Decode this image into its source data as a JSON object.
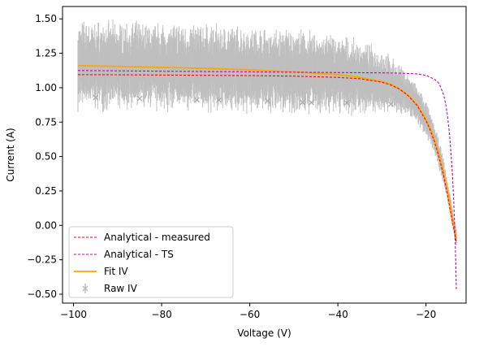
{
  "chart_data": {
    "type": "line",
    "title": "",
    "xlabel": "Voltage (V)",
    "ylabel": "Current (A)",
    "xlim": [
      -102.5,
      -10.9
    ],
    "ylim": [
      -0.565,
      1.59
    ],
    "xticks": [
      -100,
      -80,
      -60,
      -40,
      -20
    ],
    "xtick_labels": [
      "−100",
      "−80",
      "−60",
      "−40",
      "−20"
    ],
    "yticks": [
      -0.5,
      -0.25,
      0.0,
      0.25,
      0.5,
      0.75,
      1.0,
      1.25,
      1.5
    ],
    "ytick_labels": [
      "−0.50",
      "−0.25",
      "0.00",
      "0.25",
      "0.50",
      "0.75",
      "1.00",
      "1.25",
      "1.50"
    ],
    "grid": false,
    "legend_position": "lower-left",
    "colors": {
      "raw": "#bfbfbf",
      "measured": "#ff0000",
      "ts": "#c000c0",
      "fit": "#ffa500"
    },
    "series": [
      {
        "name": "Analytical - measured",
        "style": "dashed",
        "color": "#ff0000",
        "x": [
          -99,
          -90,
          -80,
          -70,
          -60,
          -50,
          -40,
          -35,
          -30,
          -28,
          -26,
          -24,
          -22,
          -20,
          -19,
          -18,
          -17,
          -16,
          -15,
          -14.5,
          -14,
          -13.5,
          -13.1
        ],
        "y": [
          1.095,
          1.094,
          1.092,
          1.09,
          1.088,
          1.084,
          1.075,
          1.065,
          1.04,
          1.02,
          0.99,
          0.94,
          0.87,
          0.76,
          0.69,
          0.6,
          0.49,
          0.36,
          0.2,
          0.11,
          0.02,
          -0.06,
          -0.12
        ]
      },
      {
        "name": "Analytical - TS",
        "style": "dashed",
        "color": "#c000c0",
        "x": [
          -99,
          -80,
          -60,
          -40,
          -30,
          -25,
          -22,
          -20,
          -18,
          -17,
          -16,
          -15.5,
          -15,
          -14.5,
          -14,
          -13.8,
          -13.6,
          -13.4,
          -13.2,
          -13.1
        ],
        "y": [
          1.125,
          1.12,
          1.115,
          1.11,
          1.108,
          1.105,
          1.1,
          1.09,
          1.06,
          1.03,
          0.95,
          0.88,
          0.77,
          0.6,
          0.38,
          0.25,
          0.1,
          -0.08,
          -0.3,
          -0.47
        ]
      },
      {
        "name": "Fit IV",
        "style": "solid",
        "color": "#ffa500",
        "x": [
          -99,
          -90,
          -80,
          -70,
          -60,
          -50,
          -40,
          -35,
          -30,
          -28,
          -26,
          -24,
          -22,
          -20,
          -19,
          -18,
          -17,
          -16,
          -15,
          -14.5,
          -14,
          -13.5,
          -13.1
        ],
        "y": [
          1.16,
          1.155,
          1.148,
          1.14,
          1.13,
          1.115,
          1.095,
          1.075,
          1.045,
          1.025,
          0.99,
          0.945,
          0.875,
          0.77,
          0.7,
          0.615,
          0.51,
          0.385,
          0.235,
          0.15,
          0.06,
          -0.03,
          -0.1
        ]
      },
      {
        "name": "Raw IV",
        "style": "errorbar",
        "color": "#bfbfbf",
        "x": [
          -99,
          -90,
          -80,
          -70,
          -60,
          -50,
          -40,
          -35,
          -30,
          -28,
          -26,
          -24,
          -22,
          -20,
          -19,
          -18,
          -17,
          -16,
          -15,
          -14.5,
          -14,
          -13.5,
          -13.1
        ],
        "y": [
          1.16,
          1.155,
          1.148,
          1.14,
          1.13,
          1.115,
          1.095,
          1.075,
          1.045,
          1.025,
          0.99,
          0.945,
          0.875,
          0.77,
          0.7,
          0.615,
          0.51,
          0.385,
          0.235,
          0.15,
          0.06,
          -0.03,
          -0.1
        ],
        "yerr": [
          0.27,
          0.27,
          0.27,
          0.27,
          0.26,
          0.26,
          0.24,
          0.22,
          0.19,
          0.17,
          0.15,
          0.13,
          0.12,
          0.11,
          0.1,
          0.1,
          0.09,
          0.08,
          0.07,
          0.07,
          0.06,
          0.06,
          0.06
        ]
      }
    ]
  }
}
